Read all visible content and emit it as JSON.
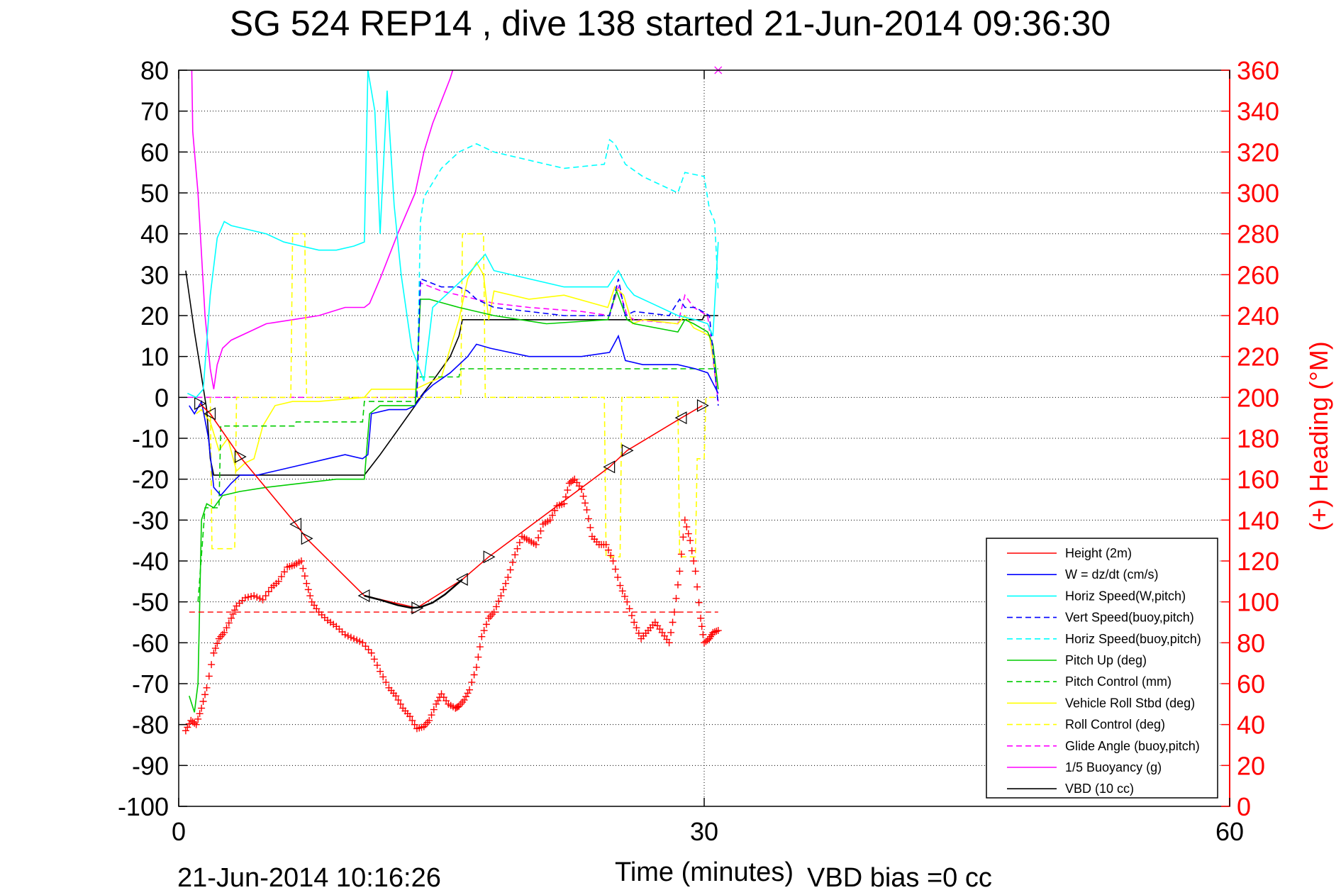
{
  "chart_data": {
    "type": "line",
    "title": "SG 524   REP14  , dive 138 started 21-Jun-2014 09:36:30",
    "xlabel": "Time (minutes)",
    "ylabel_right": "(+) Heading (°M)",
    "footer_left": "21-Jun-2014 10:16:26",
    "footer_right": "VBD bias =0 cc",
    "xlim": [
      0,
      60
    ],
    "ylim": [
      -100,
      80
    ],
    "ylim_right": [
      0,
      360
    ],
    "x_ticks": [
      "0",
      "30",
      "60"
    ],
    "x_tick_values": [
      0,
      30,
      60
    ],
    "y_ticks": [
      "80",
      "70",
      "60",
      "50",
      "40",
      "30",
      "20",
      "10",
      "0",
      "-10",
      "-20",
      "-30",
      "-40",
      "-50",
      "-60",
      "-70",
      "-80",
      "-90",
      "-100"
    ],
    "y_tick_values": [
      80,
      70,
      60,
      50,
      40,
      30,
      20,
      10,
      0,
      -10,
      -20,
      -30,
      -40,
      -50,
      -60,
      -70,
      -80,
      -90,
      -100
    ],
    "y2_ticks": [
      "360",
      "340",
      "320",
      "300",
      "280",
      "260",
      "240",
      "220",
      "200",
      "180",
      "160",
      "140",
      "120",
      "100",
      "80",
      "60",
      "40",
      "20",
      "0"
    ],
    "y2_tick_values": [
      360,
      340,
      320,
      300,
      280,
      260,
      240,
      220,
      200,
      180,
      160,
      140,
      120,
      100,
      80,
      60,
      40,
      20,
      0
    ],
    "grid": true,
    "legend_position": "bottom-right",
    "series": [
      {
        "name": "Height (2m)",
        "color": "#ff0000",
        "dash": "",
        "x": [
          1.2,
          1.8,
          3.5,
          6.7,
          7.3,
          10.6,
          13.6,
          16.2,
          17.7,
          24.6,
          25.6,
          28.7,
          29.9
        ],
        "y": [
          -1.5,
          -4,
          -14.5,
          -31,
          -34.5,
          -48.5,
          -51.5,
          -44.5,
          -39,
          -17,
          -13,
          -5,
          -2
        ]
      },
      {
        "name": "W = dz/dt (cm/s)",
        "color": "#0000ff",
        "dash": "",
        "x": [
          0.6,
          0.9,
          1.3,
          1.7,
          2.0,
          2.4,
          3.0,
          3.5,
          4.5,
          5.5,
          6.5,
          7.5,
          8.5,
          9.5,
          10.5,
          10.8,
          11.0,
          12.0,
          13.0,
          13.5,
          14.0,
          14.5,
          15.5,
          16.5,
          17.0,
          17.8,
          20,
          23,
          24.6,
          25.1,
          25.5,
          26.5,
          28.5,
          29.5,
          30.2,
          30.8
        ],
        "y": [
          -2,
          -4,
          -1,
          -10,
          -22,
          -24,
          -21,
          -19,
          -19,
          -18,
          -17,
          -16,
          -15,
          -14,
          -15,
          -14,
          -4,
          -3,
          -3,
          -2,
          1,
          3,
          6,
          10,
          13,
          12,
          10,
          10,
          11,
          15,
          9,
          8,
          8,
          7,
          6,
          1
        ]
      },
      {
        "name": "Horiz Speed(W,pitch)",
        "color": "#00ffff",
        "dash": "",
        "x": [
          0.5,
          1.0,
          1.4,
          1.8,
          2.2,
          2.6,
          3.0,
          4.0,
          5.0,
          6.0,
          7.0,
          8.0,
          9.0,
          10.0,
          10.6,
          10.8,
          11.2,
          11.5,
          11.9,
          12.3,
          12.7,
          13.3,
          14.0,
          14.5,
          15.5,
          16.5,
          17.5,
          18,
          20,
          22,
          24.5,
          25.1,
          25.6,
          26,
          27,
          28.5,
          29.5,
          30.2,
          30.5,
          30.8
        ],
        "y": [
          1,
          0,
          2,
          25,
          39,
          43,
          42,
          41,
          40,
          38,
          37,
          36,
          36,
          37,
          38,
          80,
          70,
          40,
          75,
          47,
          30,
          12,
          4,
          22,
          26,
          30,
          35,
          31,
          29,
          27,
          27,
          31,
          27,
          25,
          23,
          20,
          19,
          18,
          15,
          38
        ]
      },
      {
        "name": "Vert Speed(buoy,pitch)",
        "color": "#0000ff",
        "dash": "8,5",
        "x": [
          13.6,
          13.8,
          15,
          16,
          16.5,
          17,
          18,
          20,
          22,
          24.6,
          25.1,
          25.5,
          26,
          28,
          28.6,
          28.9,
          29.5,
          30.3,
          30.8
        ],
        "y": [
          0,
          29,
          27,
          27,
          26,
          24,
          22,
          21,
          20,
          20,
          29,
          20,
          21,
          20,
          24,
          22,
          22,
          20,
          -2
        ]
      },
      {
        "name": "Horiz Speed(buoy,pitch)",
        "color": "#00ffff",
        "dash": "8,5",
        "x": [
          13.6,
          13.8,
          14,
          15,
          16,
          17,
          18,
          20,
          22,
          24.3,
          24.6,
          24.9,
          25.5,
          26.5,
          28.5,
          28.9,
          30.0,
          30.3,
          30.6,
          30.8
        ],
        "y": [
          0,
          43,
          49,
          56,
          60,
          62,
          60,
          58,
          56,
          57,
          63,
          62,
          57,
          54,
          50,
          55,
          54,
          46,
          43,
          26
        ]
      },
      {
        "name": "Pitch Up (deg)",
        "color": "#00cc00",
        "dash": "",
        "x": [
          0.6,
          0.9,
          1.1,
          1.3,
          1.6,
          2.0,
          2.5,
          3.5,
          5,
          7,
          9,
          10.6,
          10.9,
          11.5,
          13.5,
          13.8,
          14.3,
          16,
          18,
          21,
          24.5,
          25,
          25.6,
          26,
          28.5,
          28.9,
          29.4,
          30.2,
          30.5,
          30.8
        ],
        "y": [
          -73,
          -77,
          -70,
          -30,
          -26,
          -27,
          -24,
          -23,
          -22,
          -21,
          -20,
          -20,
          -4,
          -2,
          -2,
          24,
          24,
          22,
          20,
          18,
          19,
          26,
          19,
          18,
          16,
          19,
          18,
          16,
          13,
          2
        ]
      },
      {
        "name": "Pitch Control (mm)",
        "color": "#00cc00",
        "dash": "8,5",
        "x": [
          1.1,
          1.5,
          2.3,
          2.4,
          6.6,
          6.7,
          10.5,
          10.6,
          13.5,
          13.6,
          16.0,
          16.1,
          30.8
        ],
        "y": [
          -50,
          -27,
          -27,
          -7,
          -7,
          -6,
          -6,
          -1,
          -1,
          5,
          5,
          7,
          7
        ]
      },
      {
        "name": "Vehicle Roll Stbd (deg)",
        "color": "#ffff00",
        "dash": "",
        "x": [
          1.0,
          1.3,
          1.8,
          2.3,
          2.8,
          3.3,
          3.8,
          4.3,
          4.8,
          5.5,
          6.5,
          8.0,
          10.6,
          11.0,
          12.0,
          13.5,
          14.0,
          15,
          16,
          16.5,
          17.0,
          17.4,
          17.7,
          18,
          20,
          22,
          24.5,
          24.9,
          25.4,
          25.9,
          26.5,
          28.5,
          28.9,
          29.4,
          29.9,
          30.3,
          30.8
        ],
        "y": [
          -4,
          -3,
          -6,
          -13,
          -10,
          -18,
          -16,
          -15,
          -7,
          -2,
          -1,
          -1,
          0,
          2,
          2,
          2,
          3,
          5,
          19,
          29,
          33,
          30,
          19,
          26,
          24,
          25,
          22,
          27,
          25,
          18,
          19,
          18,
          20,
          17,
          16,
          15,
          2
        ]
      },
      {
        "name": "Roll Control (deg)",
        "color": "#ffff00",
        "dash": "8,5",
        "x": [
          1.8,
          1.9,
          3.2,
          3.3,
          6.4,
          6.5,
          7.2,
          7.3,
          10.5,
          10.6,
          13.5,
          13.6,
          16.1,
          16.2,
          17.4,
          17.5,
          24.3,
          24.4,
          25.2,
          25.3,
          28.5,
          28.6,
          29.5,
          29.6,
          30.0,
          30.1,
          30.8
        ],
        "y": [
          0,
          -37,
          -37,
          0,
          0,
          40,
          40,
          0,
          0,
          0,
          0,
          0,
          0,
          40,
          40,
          0,
          0,
          -39,
          -39,
          0,
          0,
          -39,
          -39,
          -15,
          -15,
          0,
          0
        ]
      },
      {
        "name": "Glide Angle (buoy,pitch)",
        "color": "#ff00ff",
        "dash": "8,5",
        "x": [
          0.5,
          13.6,
          13.8,
          15,
          16,
          18,
          20,
          23,
          24.6,
          25.1,
          25.6,
          26,
          28.5,
          28.9,
          29.4,
          30.2,
          30.8
        ],
        "y": [
          0,
          0,
          28,
          26,
          25,
          23,
          22,
          21,
          20,
          27,
          20,
          19,
          18,
          25,
          22,
          20,
          -1
        ]
      },
      {
        "name": "1/5 Buoyancy (g)",
        "color": "#ff00ff",
        "dash": "",
        "x": [
          0.6,
          0.8,
          1.1,
          1.5,
          1.8,
          2.0,
          2.2,
          2.5,
          3.0,
          4.0,
          5.0,
          6.5,
          8.0,
          9.5,
          10.6,
          10.9,
          11.5,
          12.5,
          13.5,
          14.0,
          14.5,
          15.5,
          16.0
        ],
        "y": [
          120,
          65,
          50,
          20,
          7,
          2,
          8,
          12,
          14,
          16,
          18,
          19,
          20,
          22,
          22,
          23,
          29,
          40,
          50,
          60,
          67,
          78,
          85
        ]
      },
      {
        "name": "VBD (10 cc)",
        "color": "#000000",
        "dash": "",
        "x": [
          0.4,
          0.6,
          0.9,
          1.2,
          1.6,
          1.8,
          2.0,
          2.5,
          10.6,
          11.5,
          12.5,
          13.5,
          13.6,
          14.5,
          15.5,
          16.0,
          16.2,
          17.0,
          19,
          24,
          29.9,
          30.0,
          30.8
        ],
        "y": [
          31,
          25,
          16,
          8,
          -3,
          -15,
          -19,
          -19,
          -19,
          -14,
          -8,
          -2,
          -1,
          4,
          10,
          15,
          19,
          19,
          19,
          19,
          19,
          20,
          20
        ]
      }
    ],
    "heading_series": {
      "axis": "right",
      "color": "#ff0000",
      "marker": "+",
      "x": [
        0.4,
        0.7,
        1.0,
        1.3,
        1.6,
        2.0,
        2.3,
        2.6,
        3.0,
        3.3,
        3.8,
        4.3,
        4.8,
        5.3,
        5.7,
        6.2,
        6.6,
        7.0,
        7.3,
        7.6,
        8.0,
        8.5,
        9.0,
        9.5,
        10.0,
        10.5,
        11.0,
        11.5,
        12.0,
        12.4,
        12.8,
        13.2,
        13.6,
        14.0,
        14.3,
        14.7,
        15.0,
        15.4,
        15.8,
        16.0,
        16.3,
        16.6,
        17.0,
        17.3,
        17.7,
        18.0,
        18.4,
        18.8,
        19.2,
        19.6,
        20.0,
        20.4,
        20.8,
        21.2,
        21.6,
        22.0,
        22.3,
        22.6,
        23.0,
        23.3,
        23.6,
        24.0,
        24.4,
        24.8,
        25.2,
        25.6,
        26.0,
        26.4,
        26.8,
        27.2,
        27.6,
        28.0,
        28.3,
        28.6,
        28.9,
        29.2,
        29.5,
        29.8,
        30.0,
        30.3,
        30.5,
        30.8
      ],
      "y": [
        37,
        42,
        40,
        48,
        58,
        75,
        82,
        85,
        92,
        98,
        102,
        103,
        101,
        107,
        110,
        117,
        118,
        120,
        109,
        100,
        95,
        91,
        88,
        84,
        82,
        80,
        75,
        66,
        58,
        54,
        48,
        44,
        38,
        39,
        42,
        50,
        55,
        50,
        48,
        49,
        52,
        57,
        68,
        83,
        92,
        95,
        103,
        112,
        123,
        132,
        130,
        128,
        138,
        140,
        147,
        148,
        158,
        160,
        155,
        145,
        132,
        128,
        128,
        120,
        108,
        100,
        90,
        82,
        86,
        90,
        85,
        80,
        95,
        115,
        140,
        130,
        115,
        92,
        80,
        82,
        85,
        86
      ]
    },
    "heading_reference": {
      "y_right": 95,
      "color": "#ff0000",
      "dash": "8,5"
    },
    "annotations": [
      {
        "type": "end-marker",
        "x": 30.8,
        "y": 80,
        "color": "#ff00ff"
      }
    ]
  }
}
